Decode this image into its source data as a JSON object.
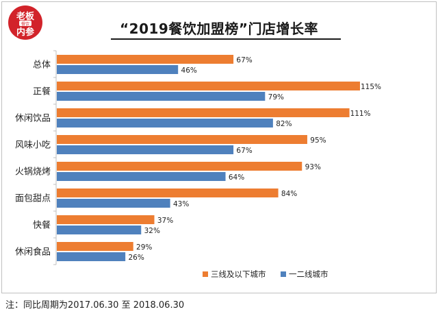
{
  "logo": {
    "line1": "老板",
    "line2": "内参",
    "badge": "餐饮"
  },
  "chart_data": {
    "type": "bar",
    "orientation": "horizontal",
    "title": "“2019餐饮加盟榜”门店增长率",
    "categories": [
      "总体",
      "正餐",
      "休闲饮品",
      "风味小吃",
      "火锅烧烤",
      "面包甜点",
      "快餐",
      "休闲食品"
    ],
    "series": [
      {
        "name": "三线及以下城市",
        "color": "#ed7d31",
        "values": [
          67,
          115,
          111,
          95,
          93,
          84,
          37,
          29
        ]
      },
      {
        "name": "一二线城市",
        "color": "#4f81bd",
        "values": [
          46,
          79,
          82,
          67,
          64,
          43,
          32,
          26
        ]
      }
    ],
    "value_suffix": "%",
    "xlim": [
      0,
      115
    ],
    "grid": false,
    "legend": "bottom-right"
  },
  "note": "注：同比周期为2017.06.30 至 2018.06.30"
}
